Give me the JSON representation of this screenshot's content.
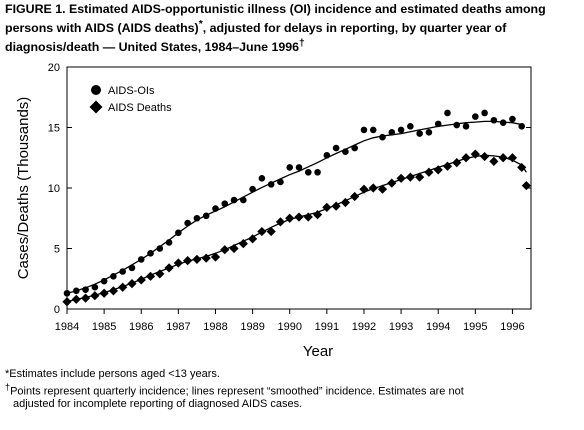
{
  "figure": {
    "title_main": "FIGURE 1. Estimated AIDS-opportunistic illness (OI) incidence and estimated deaths among persons with AIDS (AIDS deaths)",
    "title_mark_1": "*",
    "title_rest": ", adjusted for delays in reporting, by quarter year of diagnosis/death — United States, 1984–June 1996",
    "title_mark_2": "†"
  },
  "footnotes": {
    "note_1": "*Estimates include persons aged <13 years.",
    "note_2_mark": "†",
    "note_2_line1": "Points represent quarterly incidence; lines represent “smoothed” incidence. Estimates are not",
    "note_2_line2": "adjusted for incomplete reporting of diagnosed AIDS cases."
  },
  "chart_data": {
    "type": "scatter",
    "xlabel": "Year",
    "ylabel": "Cases/Deaths (Thousands)",
    "xlim": [
      1984,
      1996.5
    ],
    "ylim": [
      0,
      20
    ],
    "x_ticks": [
      "1984",
      "1985",
      "1986",
      "1987",
      "1988",
      "1989",
      "1990",
      "1991",
      "1992",
      "1993",
      "1994",
      "1995",
      "1996"
    ],
    "y_ticks": [
      "0",
      "5",
      "10",
      "15",
      "20"
    ],
    "grid": false,
    "legend_position": "top-left",
    "x_quarters": [
      1984.0,
      1984.25,
      1984.5,
      1984.75,
      1985.0,
      1985.25,
      1985.5,
      1985.75,
      1986.0,
      1986.25,
      1986.5,
      1986.75,
      1987.0,
      1987.25,
      1987.5,
      1987.75,
      1988.0,
      1988.25,
      1988.5,
      1988.75,
      1989.0,
      1989.25,
      1989.5,
      1989.75,
      1990.0,
      1990.25,
      1990.5,
      1990.75,
      1991.0,
      1991.25,
      1991.5,
      1991.75,
      1992.0,
      1992.25,
      1992.5,
      1992.75,
      1993.0,
      1993.25,
      1993.5,
      1993.75,
      1994.0,
      1994.25,
      1994.5,
      1994.75,
      1995.0,
      1995.25,
      1995.5,
      1995.75,
      1996.0,
      1996.25
    ],
    "series": [
      {
        "name": "AIDS-OIs",
        "marker": "circle",
        "points": [
          1.3,
          1.5,
          1.6,
          1.8,
          2.3,
          2.7,
          3.1,
          3.4,
          4.1,
          4.6,
          5.0,
          5.5,
          6.3,
          7.1,
          7.5,
          7.7,
          8.3,
          8.7,
          9.0,
          9.0,
          9.9,
          10.8,
          10.3,
          10.5,
          11.7,
          11.7,
          11.3,
          11.3,
          12.7,
          13.3,
          13.0,
          13.3,
          14.8,
          14.8,
          14.2,
          14.6,
          14.8,
          15.1,
          14.5,
          14.6,
          15.3,
          16.2,
          15.2,
          15.1,
          15.9,
          16.2,
          15.6,
          15.4,
          15.7,
          15.1
        ],
        "smoothed": [
          1.3,
          1.5,
          1.75,
          2.05,
          2.4,
          2.8,
          3.2,
          3.65,
          4.1,
          4.6,
          5.15,
          5.7,
          6.3,
          6.85,
          7.35,
          7.75,
          8.1,
          8.45,
          8.85,
          9.25,
          9.65,
          10.05,
          10.4,
          10.75,
          11.1,
          11.4,
          11.75,
          12.1,
          12.5,
          12.85,
          13.2,
          13.55,
          13.9,
          14.15,
          14.3,
          14.4,
          14.5,
          14.65,
          14.8,
          14.95,
          15.1,
          15.2,
          15.3,
          15.4,
          15.45,
          15.5,
          15.5,
          15.45,
          15.4,
          15.25
        ]
      },
      {
        "name": "AIDS Deaths",
        "marker": "diamond",
        "points": [
          0.6,
          0.8,
          0.9,
          1.1,
          1.3,
          1.5,
          1.8,
          2.1,
          2.4,
          2.7,
          2.9,
          3.4,
          3.8,
          4.0,
          4.1,
          4.2,
          4.3,
          4.9,
          5.0,
          5.4,
          5.8,
          6.4,
          6.4,
          7.2,
          7.5,
          7.6,
          7.6,
          7.8,
          8.4,
          8.5,
          8.8,
          9.3,
          9.9,
          10.0,
          9.9,
          10.4,
          10.8,
          10.9,
          10.9,
          11.3,
          11.5,
          11.8,
          12.1,
          12.5,
          12.8,
          12.6,
          12.2,
          12.5,
          12.5,
          11.7
        ],
        "extra_point": {
          "x": 1996.375,
          "y": 10.2
        },
        "smoothed": [
          0.6,
          0.8,
          0.95,
          1.15,
          1.35,
          1.6,
          1.85,
          2.15,
          2.45,
          2.8,
          3.1,
          3.4,
          3.7,
          3.95,
          4.15,
          4.35,
          4.6,
          4.9,
          5.25,
          5.6,
          5.95,
          6.35,
          6.75,
          7.1,
          7.4,
          7.6,
          7.8,
          8.0,
          8.3,
          8.6,
          8.95,
          9.3,
          9.65,
          9.95,
          10.2,
          10.45,
          10.7,
          10.95,
          11.2,
          11.45,
          11.7,
          11.95,
          12.2,
          12.45,
          12.6,
          12.7,
          12.65,
          12.55,
          12.3,
          11.9
        ],
        "smoothed_end": {
          "x": 1996.375,
          "y": 11.3
        }
      }
    ]
  }
}
